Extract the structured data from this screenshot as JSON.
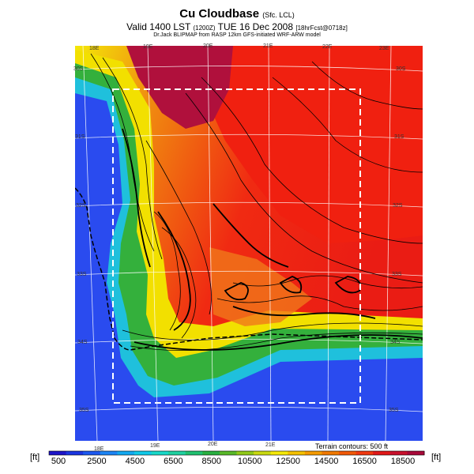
{
  "header": {
    "title": "Cu Cloudbase",
    "title_suffix": "(Sfc. LCL)",
    "valid_line_a": "Valid 1400 LST",
    "valid_line_paren": "(1200Z)",
    "valid_line_b": "TUE 16 Dec 2008",
    "valid_line_tail": "[18hrFcst@0718z]",
    "credit": "Dr.Jack BLIPMAP from RASP 12km GFS-initiated WRF-ARW model"
  },
  "map": {
    "lon_labels_top": [
      "18E",
      "19E",
      "20E",
      "21E",
      "22E",
      "23E"
    ],
    "lon_labels_bottom": [
      "18E",
      "19E",
      "20E",
      "21E"
    ],
    "lat_labels": [
      "30S",
      "31S",
      "32S",
      "33S",
      "34S",
      "35S"
    ],
    "terrain_note": "Terrain contours: 500 ft",
    "colors": {
      "ocean": "#2a4bef",
      "coast_cyan": "#20c7e0",
      "green": "#30b040",
      "yellow": "#f2e500",
      "orange": "#f08c10",
      "red": "#f01b12",
      "dark_red": "#b0103c"
    }
  },
  "colorbar": {
    "unit_left": "[ft]",
    "unit_right": "[ft]",
    "labels": [
      "500",
      "2500",
      "4500",
      "6500",
      "8500",
      "10500",
      "12500",
      "14500",
      "16500",
      "18500"
    ],
    "colors": [
      "#1c14c8",
      "#1a35e0",
      "#1c58f0",
      "#1c84f4",
      "#12a8f0",
      "#10c8e8",
      "#18d8c8",
      "#20d0a0",
      "#20c070",
      "#28b040",
      "#58b828",
      "#90c818",
      "#c8d810",
      "#f4e808",
      "#f4c000",
      "#f49a00",
      "#f07800",
      "#f05808",
      "#f03810",
      "#e01818",
      "#c8102c",
      "#a80838"
    ]
  }
}
